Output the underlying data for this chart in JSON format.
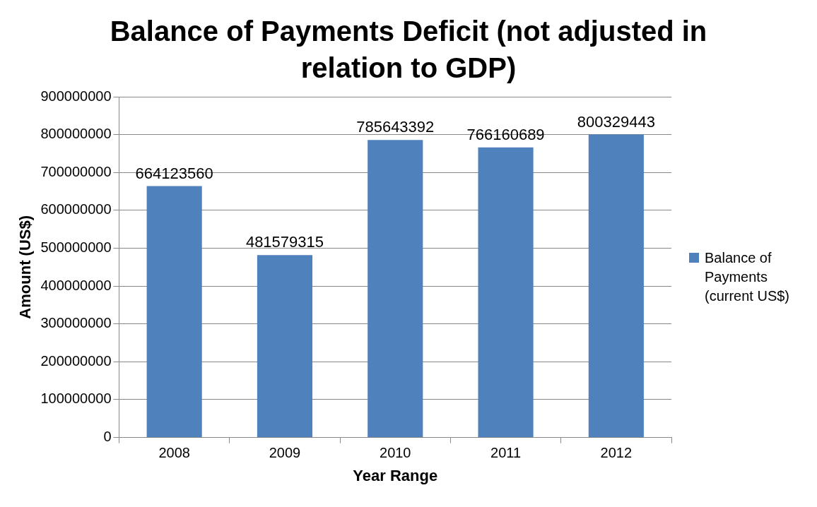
{
  "chart_data": {
    "type": "bar",
    "title": "Balance of Payments Deficit (not adjusted in relation to GDP)",
    "xlabel": "Year Range",
    "ylabel": "Amount (US$)",
    "categories": [
      "2008",
      "2009",
      "2010",
      "2011",
      "2012"
    ],
    "series": [
      {
        "name": "Balance of Payments (current US$)",
        "color": "#4f81bd",
        "values": [
          664123560,
          481579315,
          785643392,
          766160689,
          800329443
        ]
      }
    ],
    "ylim": [
      0,
      900000000
    ],
    "yticks": [
      0,
      100000000,
      200000000,
      300000000,
      400000000,
      500000000,
      600000000,
      700000000,
      800000000,
      900000000
    ],
    "grid": "y",
    "legend": "right",
    "data_labels": true
  }
}
